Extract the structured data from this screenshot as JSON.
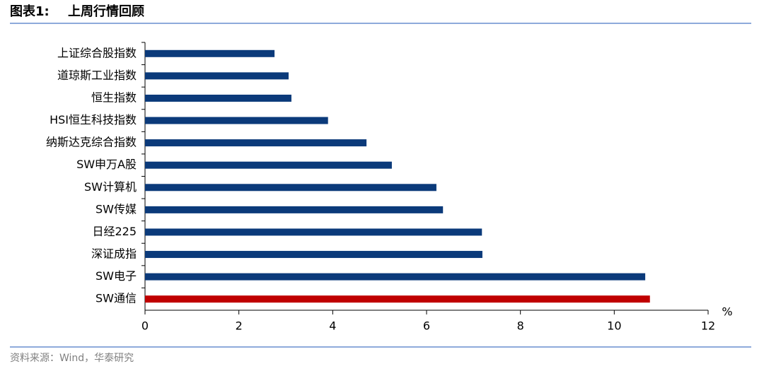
{
  "chart_data": {
    "type": "barh",
    "figure_label": "图表1:",
    "title": "上周行情回顾",
    "source": "资料来源：Wind，华泰研究",
    "x_label": "%",
    "categories": [
      "上证综合股指数",
      "道琼斯工业指数",
      "恒生指数",
      "HSI恒生科技指数",
      "纳斯达克综合指数",
      "SW申万A股",
      "SW计算机",
      "SW传媒",
      "日经225",
      "深证成指",
      "SW电子",
      "SW通信"
    ],
    "values": [
      2.76,
      3.06,
      3.12,
      3.9,
      4.72,
      5.26,
      6.21,
      6.35,
      7.18,
      7.19,
      10.66,
      10.76
    ],
    "colors": [
      "#0b3a7a",
      "#0b3a7a",
      "#0b3a7a",
      "#0b3a7a",
      "#0b3a7a",
      "#0b3a7a",
      "#0b3a7a",
      "#0b3a7a",
      "#0b3a7a",
      "#0b3a7a",
      "#0b3a7a",
      "#c00000"
    ],
    "xlim": [
      0,
      12
    ],
    "xticks": [
      0,
      2,
      4,
      6,
      8,
      10,
      12
    ]
  }
}
